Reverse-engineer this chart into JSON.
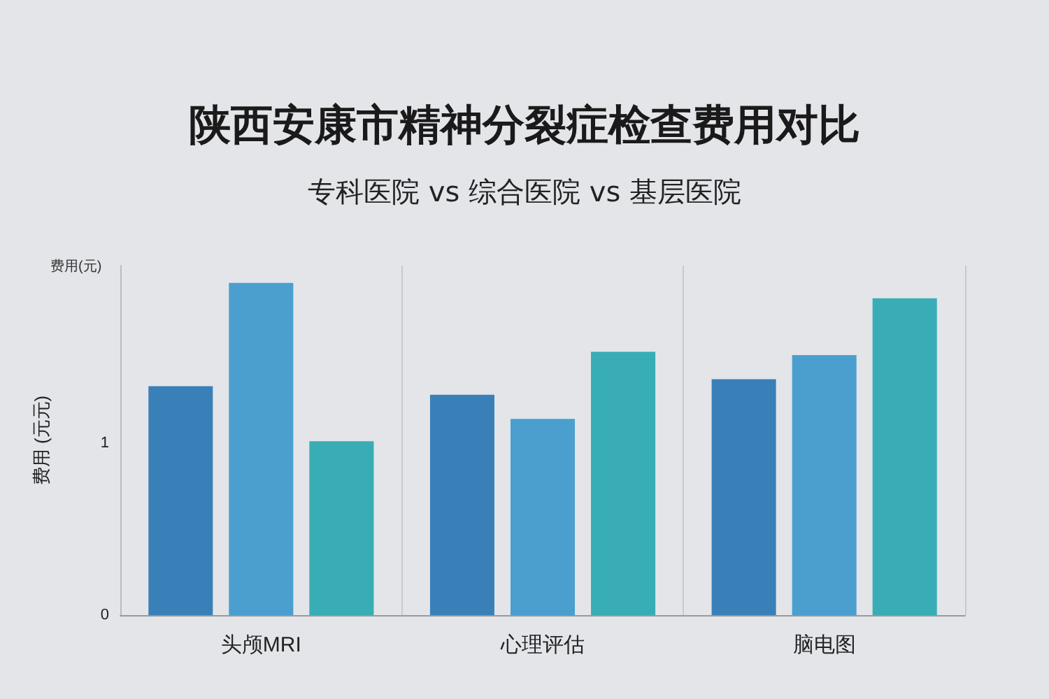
{
  "chart_data": {
    "type": "bar",
    "title": "陕西安康市精神分裂症检查费用对比",
    "subtitle": "专科医院 vs 综合医院 vs 基层医院",
    "ylabel": "费用 (元元)",
    "annotations": [
      "费用(元)"
    ],
    "categories": [
      "头颅MRI",
      "心理评估",
      "脑电图"
    ],
    "series": [
      {
        "color": "#3a80b8",
        "values": [
          1.33,
          1.28,
          1.37
        ]
      },
      {
        "color": "#4a9fcf",
        "values": [
          1.93,
          1.14,
          1.51
        ]
      },
      {
        "color": "#38adb5",
        "values": [
          1.01,
          1.53,
          1.84
        ]
      }
    ],
    "ylim": [
      0,
      2.03
    ],
    "yticks": [
      0,
      1
    ],
    "grid": "x"
  }
}
